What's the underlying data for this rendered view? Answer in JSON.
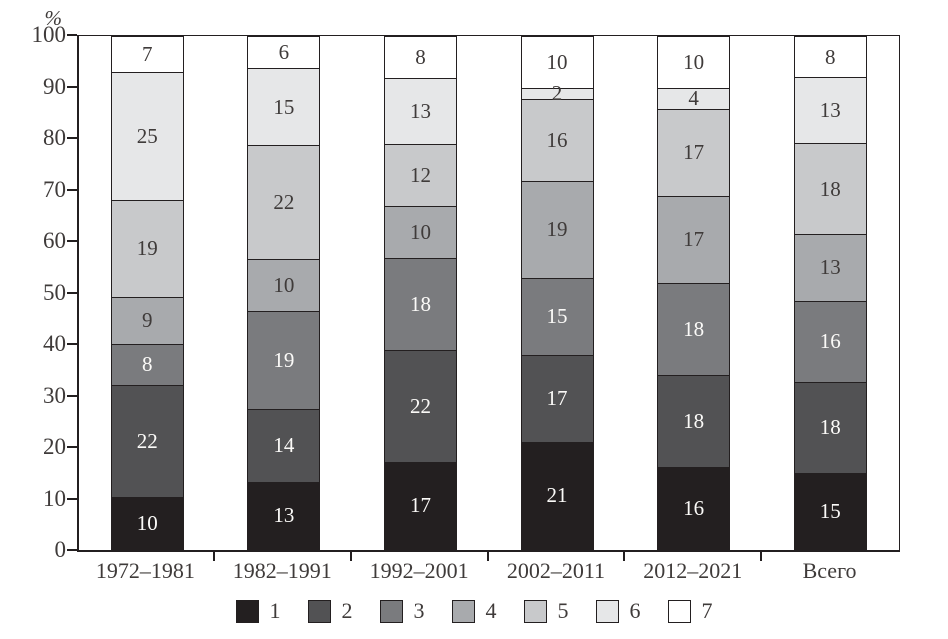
{
  "chart_data": {
    "type": "bar",
    "stacked": true,
    "title": "",
    "xlabel": "",
    "ylabel": "%",
    "ylim": [
      0,
      100
    ],
    "yticks": [
      0,
      10,
      20,
      30,
      40,
      50,
      60,
      70,
      80,
      90,
      100
    ],
    "grid": false,
    "legend_position": "bottom",
    "categories": [
      "1972–1981",
      "1982–1991",
      "1992–2001",
      "2002–2011",
      "2012–2021",
      "Всего"
    ],
    "series": [
      {
        "name": "1",
        "color": "#231f20",
        "text_color": "#fbfaf8",
        "values": [
          10,
          13,
          17,
          21,
          16,
          15
        ]
      },
      {
        "name": "2",
        "color": "#525254",
        "text_color": "#fbfaf8",
        "values": [
          22,
          14,
          22,
          17,
          18,
          18
        ]
      },
      {
        "name": "3",
        "color": "#7a7b7e",
        "text_color": "#fbfaf8",
        "values": [
          8,
          19,
          18,
          15,
          18,
          16
        ]
      },
      {
        "name": "4",
        "color": "#a8aaad",
        "text_color": "#3f3b3a",
        "values": [
          9,
          10,
          10,
          19,
          17,
          13
        ]
      },
      {
        "name": "5",
        "color": "#c8c9cb",
        "text_color": "#3f3b3a",
        "values": [
          19,
          22,
          12,
          16,
          17,
          18
        ]
      },
      {
        "name": "6",
        "color": "#e6e7e8",
        "text_color": "#3f3b3a",
        "values": [
          25,
          15,
          13,
          2,
          4,
          13
        ]
      },
      {
        "name": "7",
        "color": "#ffffff",
        "text_color": "#3f3b3a",
        "values": [
          7,
          6,
          8,
          10,
          10,
          8
        ]
      }
    ],
    "axis_color": "#231f20"
  }
}
